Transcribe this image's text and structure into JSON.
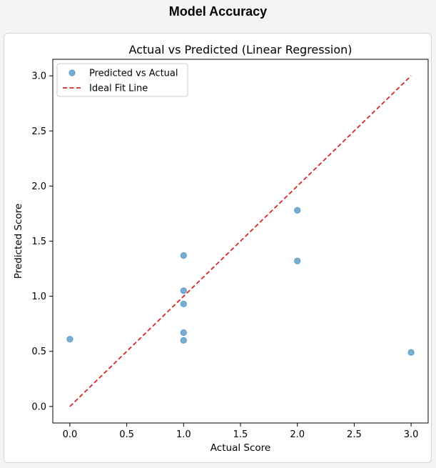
{
  "page": {
    "title": "Model Accuracy"
  },
  "chart_data": {
    "type": "scatter",
    "title": "Actual vs Predicted (Linear Regression)",
    "xlabel": "Actual Score",
    "ylabel": "Predicted Score",
    "xlim": [
      -0.15,
      3.15
    ],
    "ylim": [
      -0.15,
      3.15
    ],
    "xticks": [
      "0.0",
      "0.5",
      "1.0",
      "1.5",
      "2.0",
      "2.5",
      "3.0"
    ],
    "yticks": [
      "0.0",
      "0.5",
      "1.0",
      "1.5",
      "2.0",
      "2.5",
      "3.0"
    ],
    "grid": false,
    "legend_position": "top-left",
    "series": [
      {
        "name": "Predicted vs Actual",
        "kind": "scatter",
        "color": "#1f77b4",
        "points": [
          {
            "x": 0.0,
            "y": 0.61
          },
          {
            "x": 1.0,
            "y": 1.37
          },
          {
            "x": 1.0,
            "y": 1.05
          },
          {
            "x": 1.0,
            "y": 0.93
          },
          {
            "x": 1.0,
            "y": 0.67
          },
          {
            "x": 1.0,
            "y": 0.6
          },
          {
            "x": 2.0,
            "y": 1.78
          },
          {
            "x": 2.0,
            "y": 1.32
          },
          {
            "x": 3.0,
            "y": 0.49
          }
        ]
      },
      {
        "name": "Ideal Fit Line",
        "kind": "dashed-line",
        "color": "#d62728",
        "points": [
          {
            "x": 0.0,
            "y": 0.0
          },
          {
            "x": 3.0,
            "y": 3.0
          }
        ]
      }
    ]
  }
}
